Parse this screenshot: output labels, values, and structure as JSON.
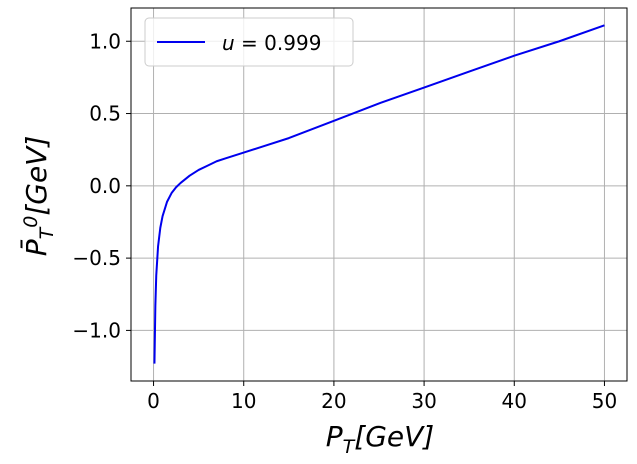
{
  "chart_data": {
    "type": "line",
    "title": "",
    "xlabel": "P_T[GeV]",
    "ylabel": "P̄_T^0[GeV]",
    "xlim": [
      -2.5,
      52.5
    ],
    "ylim": [
      -1.35,
      1.23
    ],
    "xticks": [
      0,
      10,
      20,
      30,
      40,
      50
    ],
    "xtick_labels": [
      "0",
      "10",
      "20",
      "30",
      "40",
      "50"
    ],
    "yticks": [
      -1.0,
      -0.5,
      0.0,
      0.5,
      1.0
    ],
    "ytick_labels": [
      "−1.0",
      "−0.5",
      "0.0",
      "0.5",
      "1.0"
    ],
    "grid": true,
    "legend_position": "top-left",
    "colors": {
      "series": "#0000ee",
      "grid": "#b0b0b0",
      "frame": "#000000"
    },
    "series": [
      {
        "name": "u = 0.999",
        "x": [
          0.1,
          0.2,
          0.3,
          0.5,
          0.75,
          1.0,
          1.5,
          2.0,
          2.5,
          3.0,
          4.0,
          5.0,
          6.0,
          7.0,
          8.0,
          10.0,
          12.0,
          15.0,
          20.0,
          25.0,
          30.0,
          35.0,
          40.0,
          45.0,
          50.0
        ],
        "y": [
          -1.23,
          -0.83,
          -0.62,
          -0.42,
          -0.29,
          -0.21,
          -0.11,
          -0.05,
          -0.01,
          0.02,
          0.07,
          0.11,
          0.14,
          0.17,
          0.19,
          0.23,
          0.27,
          0.33,
          0.45,
          0.57,
          0.68,
          0.79,
          0.9,
          1.0,
          1.11
        ]
      }
    ]
  }
}
